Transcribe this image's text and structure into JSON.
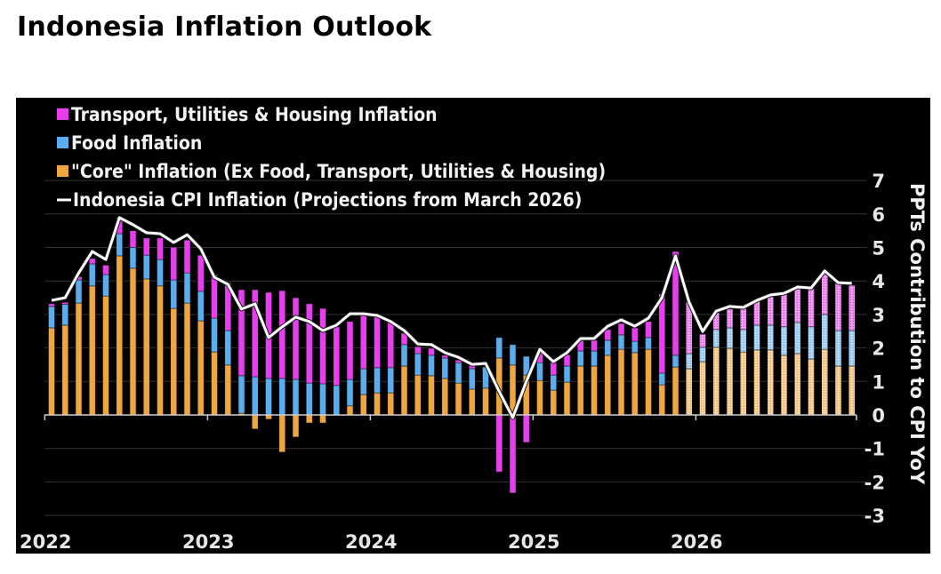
{
  "title": "Indonesia Inflation Outlook",
  "chart_data": {
    "type": "bar",
    "stacked": true,
    "title": "Indonesia Inflation Outlook",
    "xlabel": "",
    "ylabel": "PPTs Contribution to CPI YoY",
    "ylim": [
      -3,
      7
    ],
    "yticks": [
      7,
      6,
      5,
      4,
      3,
      2,
      1,
      0,
      -1,
      -2,
      -3
    ],
    "xtick_labels": [
      "2022",
      "2023",
      "2024",
      "2025",
      "2026"
    ],
    "grid": true,
    "legend_position": "top-left",
    "projection_start_index": 47,
    "categories": [
      "2022-01",
      "2022-02",
      "2022-03",
      "2022-04",
      "2022-05",
      "2022-06",
      "2022-07",
      "2022-08",
      "2022-09",
      "2022-10",
      "2022-11",
      "2022-12",
      "2023-01",
      "2023-02",
      "2023-03",
      "2023-04",
      "2023-05",
      "2023-06",
      "2023-07",
      "2023-08",
      "2023-09",
      "2023-10",
      "2023-11",
      "2023-12",
      "2024-01",
      "2024-02",
      "2024-03",
      "2024-04",
      "2024-05",
      "2024-06",
      "2024-07",
      "2024-08",
      "2024-09",
      "2024-10",
      "2024-11",
      "2024-12",
      "2025-01",
      "2025-02",
      "2025-03",
      "2025-04",
      "2025-05",
      "2025-06",
      "2025-07",
      "2025-08",
      "2025-09",
      "2025-10",
      "2025-11",
      "2025-12",
      "2026-01",
      "2026-02",
      "2026-03",
      "2026-04",
      "2026-05",
      "2026-06",
      "2026-07",
      "2026-08",
      "2026-09",
      "2026-10",
      "2026-11",
      "2026-12"
    ],
    "series": [
      {
        "name": "\"Core\" Inflation (Ex Food, Transport, Utilities & Housing)",
        "color": "#f0a640",
        "kind": "bar",
        "values": [
          2.6,
          2.68,
          3.34,
          3.85,
          3.55,
          4.75,
          4.38,
          4.06,
          3.85,
          3.18,
          3.34,
          2.81,
          1.88,
          1.49,
          0.05,
          -0.42,
          -0.13,
          -1.11,
          -0.66,
          -0.24,
          -0.24,
          0.0,
          0.27,
          0.61,
          0.66,
          0.66,
          1.46,
          1.19,
          1.17,
          1.09,
          0.95,
          0.77,
          0.8,
          1.7,
          1.49,
          1.19,
          1.03,
          0.74,
          0.98,
          1.46,
          1.46,
          1.78,
          1.96,
          1.86,
          1.96,
          0.9,
          1.43,
          1.38,
          1.59,
          2.02,
          1.99,
          1.88,
          1.94,
          1.94,
          1.78,
          1.83,
          1.67,
          1.96,
          1.46,
          1.46
        ]
      },
      {
        "name": "Food Inflation",
        "color": "#5aaef0",
        "kind": "bar",
        "values": [
          0.64,
          0.62,
          0.69,
          0.66,
          0.64,
          0.66,
          0.62,
          0.71,
          0.79,
          0.85,
          0.9,
          0.88,
          1.01,
          1.03,
          1.12,
          1.14,
          1.09,
          1.09,
          1.06,
          0.95,
          0.93,
          0.88,
          0.79,
          0.77,
          0.75,
          0.75,
          0.64,
          0.64,
          0.61,
          0.61,
          0.61,
          0.61,
          0.63,
          0.61,
          0.61,
          0.56,
          0.53,
          0.45,
          0.48,
          0.45,
          0.45,
          0.45,
          0.43,
          0.34,
          0.35,
          0.35,
          0.35,
          0.45,
          0.43,
          0.53,
          0.61,
          0.67,
          0.74,
          0.74,
          0.85,
          0.93,
          0.96,
          1.04,
          1.06,
          1.06
        ]
      },
      {
        "name": "Transport, Utilities & Housing Inflation",
        "color": "#e83ef0",
        "kind": "bar",
        "values": [
          0.08,
          0.06,
          0.1,
          0.16,
          0.28,
          0.5,
          0.5,
          0.51,
          0.64,
          0.98,
          0.98,
          1.08,
          1.3,
          1.43,
          2.57,
          2.6,
          2.57,
          2.62,
          2.44,
          2.37,
          2.25,
          1.75,
          1.73,
          1.67,
          1.61,
          1.38,
          0.34,
          0.21,
          0.21,
          0.08,
          0.08,
          0.11,
          0.0,
          -1.7,
          -2.33,
          -0.82,
          0.3,
          0.4,
          0.34,
          0.32,
          0.32,
          0.32,
          0.34,
          0.4,
          0.48,
          2.36,
          3.1,
          1.54,
          0.39,
          0.5,
          0.56,
          0.63,
          0.74,
          0.87,
          0.98,
          1.03,
          1.14,
          1.22,
          1.41,
          1.35
        ]
      },
      {
        "name": "Indonesia CPI Inflation (Projections from March 2026)",
        "color": "#ffffff",
        "kind": "line",
        "values": [
          3.42,
          3.5,
          4.24,
          4.88,
          4.64,
          5.89,
          5.68,
          5.44,
          5.41,
          5.15,
          5.38,
          4.96,
          4.11,
          3.9,
          3.16,
          3.32,
          2.31,
          2.63,
          2.92,
          2.79,
          2.52,
          2.68,
          3.02,
          3.02,
          2.97,
          2.79,
          2.52,
          2.12,
          2.1,
          1.86,
          1.72,
          1.51,
          1.54,
          0.7,
          -0.08,
          1.0,
          1.96,
          1.59,
          1.86,
          2.28,
          2.28,
          2.65,
          2.84,
          2.65,
          2.89,
          3.5,
          4.75,
          3.37,
          2.49,
          3.1,
          3.24,
          3.21,
          3.42,
          3.58,
          3.63,
          3.82,
          3.79,
          4.3,
          3.95,
          3.93
        ]
      }
    ]
  },
  "legend": [
    {
      "label": "Transport, Utilities & Housing Inflation",
      "color": "#e83ef0",
      "marker": "square"
    },
    {
      "label": "Food Inflation",
      "color": "#5aaef0",
      "marker": "square"
    },
    {
      "label": "\"Core\" Inflation (Ex Food, Transport, Utilities & Housing)",
      "color": "#f0a640",
      "marker": "square"
    },
    {
      "label": "Indonesia CPI Inflation (Projections from March 2026)",
      "color": "#ffffff",
      "marker": "line"
    }
  ],
  "colors": {
    "background": "#000000",
    "grid": "#333333",
    "axis": "#d0d0d0"
  }
}
